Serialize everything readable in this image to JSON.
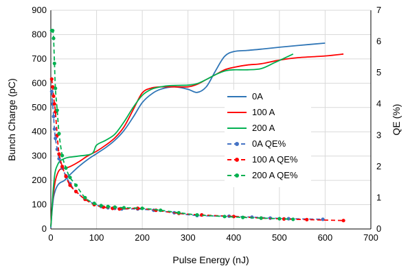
{
  "chart_data": {
    "type": "line",
    "title": "",
    "xlabel": "Pulse Energy (nJ)",
    "ylabel": "Bunch Charge (pC)",
    "y2label": "QE (%)",
    "xlim": [
      0,
      700
    ],
    "ylim": [
      0,
      900
    ],
    "y2lim": [
      0,
      7
    ],
    "xticks": [
      "0",
      "100",
      "200",
      "300",
      "400",
      "500",
      "600",
      "700"
    ],
    "yticks": [
      "0",
      "100",
      "200",
      "300",
      "400",
      "500",
      "600",
      "700",
      "800",
      "900"
    ],
    "y2ticks": [
      "0",
      "1",
      "2",
      "3",
      "4",
      "5",
      "6",
      "7"
    ],
    "grid": true,
    "legend_position": "right",
    "series": [
      {
        "name": "0A",
        "axis": "left",
        "color": "#2e75b6",
        "style": "solid",
        "marker": false,
        "x": [
          0,
          3,
          6,
          10,
          15,
          20,
          30,
          40,
          60,
          80,
          100,
          120,
          140,
          160,
          180,
          200,
          220,
          240,
          270,
          300,
          320,
          340,
          360,
          380,
          400,
          430,
          460,
          500,
          540,
          600
        ],
        "y": [
          5,
          80,
          130,
          160,
          180,
          190,
          200,
          220,
          255,
          285,
          310,
          335,
          365,
          405,
          460,
          520,
          555,
          575,
          585,
          575,
          562,
          585,
          650,
          710,
          730,
          735,
          740,
          748,
          755,
          765
        ]
      },
      {
        "name": "100 A",
        "axis": "left",
        "color": "#ff0000",
        "style": "solid",
        "marker": false,
        "x": [
          0,
          3,
          6,
          10,
          15,
          20,
          30,
          40,
          60,
          80,
          100,
          120,
          140,
          160,
          180,
          200,
          220,
          240,
          270,
          300,
          320,
          340,
          360,
          380,
          400,
          430,
          460,
          500,
          540,
          600,
          640
        ],
        "y": [
          10,
          100,
          150,
          200,
          230,
          245,
          250,
          255,
          275,
          300,
          320,
          345,
          375,
          420,
          490,
          560,
          580,
          585,
          585,
          585,
          595,
          615,
          635,
          655,
          665,
          675,
          680,
          695,
          705,
          712,
          720
        ]
      },
      {
        "name": "200 A",
        "axis": "left",
        "color": "#00b050",
        "style": "solid",
        "marker": false,
        "x": [
          0,
          2,
          4,
          7,
          10,
          15,
          20,
          30,
          40,
          60,
          90,
          100,
          120,
          140,
          160,
          180,
          200,
          220,
          240,
          260,
          300,
          320,
          340,
          360,
          380,
          400,
          430,
          460,
          490,
          530
        ],
        "y": [
          10,
          60,
          130,
          200,
          240,
          265,
          280,
          290,
          295,
          300,
          310,
          345,
          365,
          390,
          440,
          500,
          550,
          575,
          585,
          590,
          592,
          598,
          615,
          635,
          650,
          655,
          655,
          660,
          685,
          720
        ]
      },
      {
        "name": "0A QE%",
        "axis": "right",
        "color": "#4472c4",
        "style": "dashed",
        "marker": true,
        "x": [
          2,
          4,
          6,
          8,
          10,
          14,
          18,
          25,
          33,
          42,
          55,
          75,
          95,
          110,
          125,
          140,
          155,
          190,
          225,
          270,
          320,
          390,
          440,
          480,
          520,
          595
        ],
        "y": [
          4.4,
          4.0,
          3.6,
          3.2,
          2.9,
          2.55,
          2.25,
          1.95,
          1.7,
          1.45,
          1.2,
          0.95,
          0.8,
          0.72,
          0.68,
          0.66,
          0.64,
          0.64,
          0.6,
          0.52,
          0.43,
          0.41,
          0.38,
          0.35,
          0.33,
          0.31
        ]
      },
      {
        "name": "100 A QE%",
        "axis": "right",
        "color": "#ff0000",
        "style": "dashed",
        "marker": true,
        "x": [
          2,
          4,
          6,
          8,
          10,
          14,
          18,
          25,
          33,
          42,
          55,
          75,
          95,
          115,
          135,
          150,
          190,
          230,
          280,
          330,
          400,
          460,
          510,
          560,
          640
        ],
        "y": [
          4.8,
          4.55,
          4.25,
          4.0,
          3.75,
          3.0,
          2.4,
          2.0,
          1.68,
          1.4,
          1.2,
          0.95,
          0.78,
          0.7,
          0.66,
          0.64,
          0.66,
          0.6,
          0.5,
          0.45,
          0.4,
          0.35,
          0.32,
          0.3,
          0.27
        ]
      },
      {
        "name": "200 A QE%",
        "axis": "right",
        "color": "#00b050",
        "style": "dashed",
        "marker": true,
        "x": [
          2,
          4,
          6,
          8,
          10,
          14,
          18,
          25,
          33,
          42,
          55,
          75,
          95,
          110,
          125,
          140,
          160,
          200,
          240,
          280,
          320,
          380,
          420,
          460,
          500,
          530
        ],
        "y": [
          6.35,
          6.35,
          6.1,
          5.3,
          4.5,
          3.8,
          3.05,
          2.35,
          1.95,
          1.65,
          1.4,
          1.0,
          0.82,
          0.75,
          0.72,
          0.7,
          0.68,
          0.66,
          0.6,
          0.52,
          0.45,
          0.4,
          0.37,
          0.35,
          0.33,
          0.31
        ]
      }
    ]
  }
}
